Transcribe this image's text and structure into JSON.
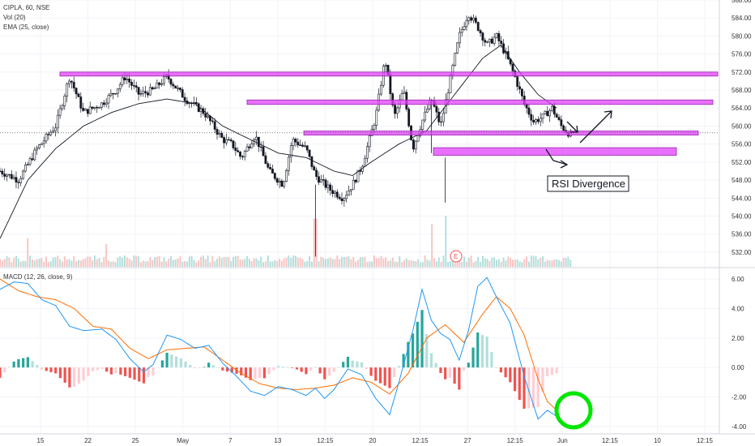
{
  "legend": {
    "symbol": "CIPLA, 60, NSE",
    "volume": "Vol (20)",
    "ema": "EMA (25, close)",
    "macd": "MACD (12, 26, close, 9)"
  },
  "annotation": "RSI Divergence",
  "earnings_marker": "E",
  "colors": {
    "up": "#26a69a",
    "down": "#ef5350",
    "candle": "#131722",
    "zone_fill": "#e040fb",
    "zone_stroke": "#9c27b0",
    "macd_line": "#2196f3",
    "signal_line": "#ff6d00",
    "circle": "#00e600",
    "grid": "#f0f3fa"
  },
  "chart_data": [
    {
      "type": "candlestick",
      "title": "CIPLA, 60, NSE",
      "ylim": [
        530,
        588
      ],
      "y_ticks": [
        "588.00",
        "584.00",
        "580.00",
        "576.00",
        "572.00",
        "568.00",
        "564.00",
        "560.00",
        "556.00",
        "552.00",
        "548.00",
        "544.00",
        "540.00",
        "536.00",
        "532.00"
      ],
      "x_ticks": [
        "15",
        "22",
        "25",
        "May",
        "7",
        "13",
        "12:15",
        "20",
        "12:15",
        "27",
        "12:15",
        "Jun",
        "12:15",
        "10",
        "12:15"
      ],
      "price_path": [
        [
          0,
          550
        ],
        [
          4,
          548
        ],
        [
          8,
          555
        ],
        [
          12,
          560
        ],
        [
          15,
          571
        ],
        [
          18,
          563
        ],
        [
          22,
          565
        ],
        [
          25,
          568
        ],
        [
          27,
          571
        ],
        [
          30,
          567
        ],
        [
          33,
          568
        ],
        [
          36,
          571
        ],
        [
          40,
          566
        ],
        [
          44,
          563
        ],
        [
          48,
          557
        ],
        [
          50,
          556
        ],
        [
          52,
          553
        ],
        [
          55,
          558
        ],
        [
          58,
          550
        ],
        [
          61,
          547
        ],
        [
          63,
          557
        ],
        [
          66,
          555
        ],
        [
          68,
          549
        ],
        [
          71,
          546
        ],
        [
          74,
          544
        ],
        [
          76,
          547
        ],
        [
          78,
          551
        ],
        [
          81,
          562
        ],
        [
          83,
          575
        ],
        [
          85,
          562
        ],
        [
          87,
          568
        ],
        [
          89,
          555
        ],
        [
          91,
          561
        ],
        [
          93,
          566
        ],
        [
          95,
          560
        ],
        [
          97,
          570
        ],
        [
          99,
          580
        ],
        [
          101,
          585
        ],
        [
          103,
          582
        ],
        [
          105,
          578
        ],
        [
          107,
          580
        ],
        [
          109,
          576
        ],
        [
          111,
          571
        ],
        [
          113,
          565
        ],
        [
          115,
          561
        ],
        [
          117,
          562
        ],
        [
          119,
          564
        ],
        [
          121,
          560
        ],
        [
          123,
          558
        ]
      ],
      "ema_path": [
        [
          0,
          535
        ],
        [
          6,
          548
        ],
        [
          12,
          555
        ],
        [
          18,
          560
        ],
        [
          24,
          563
        ],
        [
          30,
          565
        ],
        [
          36,
          566
        ],
        [
          42,
          565
        ],
        [
          48,
          560
        ],
        [
          54,
          557
        ],
        [
          60,
          554
        ],
        [
          66,
          553
        ],
        [
          72,
          550
        ],
        [
          76,
          549
        ],
        [
          80,
          552
        ],
        [
          86,
          556
        ],
        [
          92,
          559
        ],
        [
          98,
          567
        ],
        [
          104,
          575
        ],
        [
          108,
          578
        ],
        [
          112,
          572
        ],
        [
          116,
          567
        ],
        [
          120,
          564
        ]
      ],
      "volume_spikes": [
        {
          "x": 68,
          "value": 0.85
        },
        {
          "x": 93,
          "value": 0.75
        },
        {
          "x": 96,
          "value": 0.9
        },
        {
          "x": 6,
          "value": 0.5
        },
        {
          "x": 23,
          "value": 0.4
        }
      ],
      "zones": [
        {
          "low": 571.2,
          "high": 572.0
        },
        {
          "low": 564.8,
          "high": 565.8
        },
        {
          "low": 558.0,
          "high": 558.9
        },
        {
          "low": 553.5,
          "high": 555.2
        }
      ],
      "last_price": 558.5
    },
    {
      "type": "line",
      "title": "MACD (12, 26, close, 9)",
      "ylim": [
        -4.5,
        6.5
      ],
      "y_ticks": [
        "6.00",
        "4.00",
        "2.00",
        "0.00",
        "-2.00",
        "-4.00"
      ],
      "series": [
        {
          "values": [
            [
              0,
              5.3
            ],
            [
              3,
              5.8
            ],
            [
              6,
              5.7
            ],
            [
              9,
              4.6
            ],
            [
              12,
              4.2
            ],
            [
              15,
              2.8
            ],
            [
              18,
              2.5
            ],
            [
              22,
              2.6
            ],
            [
              25,
              1.9
            ],
            [
              28,
              0.6
            ],
            [
              31,
              -0.3
            ],
            [
              33,
              0.2
            ],
            [
              36,
              2.2
            ],
            [
              39,
              1.9
            ],
            [
              42,
              1.3
            ],
            [
              45,
              1.5
            ],
            [
              48,
              0.3
            ],
            [
              51,
              -0.6
            ],
            [
              54,
              -1.6
            ],
            [
              57,
              -1.9
            ],
            [
              60,
              -1.3
            ],
            [
              63,
              -1.5
            ],
            [
              66,
              -1.9
            ],
            [
              68,
              -1.4
            ],
            [
              70,
              -2.1
            ],
            [
              72,
              -1.5
            ],
            [
              75,
              -0.1
            ],
            [
              78,
              -0.5
            ],
            [
              81,
              -2.1
            ],
            [
              84,
              -3.2
            ],
            [
              86,
              -1.0
            ],
            [
              89,
              2.5
            ],
            [
              91,
              5.3
            ],
            [
              93,
              3.2
            ],
            [
              95,
              2.3
            ],
            [
              97,
              1.9
            ],
            [
              99,
              0.5
            ],
            [
              101,
              2.5
            ],
            [
              103,
              5.5
            ],
            [
              105,
              6.1
            ],
            [
              107,
              4.8
            ],
            [
              110,
              3.0
            ],
            [
              113,
              -0.6
            ],
            [
              116,
              -3.5
            ],
            [
              118,
              -2.9
            ],
            [
              120,
              -3.3
            ]
          ]
        },
        {
          "values": [
            [
              0,
              6.0
            ],
            [
              4,
              5.2
            ],
            [
              8,
              4.8
            ],
            [
              12,
              4.6
            ],
            [
              16,
              4.0
            ],
            [
              20,
              2.8
            ],
            [
              24,
              2.6
            ],
            [
              28,
              1.3
            ],
            [
              32,
              0.6
            ],
            [
              36,
              1.2
            ],
            [
              40,
              1.3
            ],
            [
              44,
              1.4
            ],
            [
              48,
              0.5
            ],
            [
              52,
              -0.4
            ],
            [
              56,
              -1.1
            ],
            [
              60,
              -1.4
            ],
            [
              64,
              -1.5
            ],
            [
              68,
              -1.4
            ],
            [
              72,
              -1.2
            ],
            [
              76,
              -0.7
            ],
            [
              80,
              -1.0
            ],
            [
              84,
              -1.8
            ],
            [
              88,
              -0.4
            ],
            [
              92,
              2.0
            ],
            [
              96,
              2.9
            ],
            [
              100,
              1.7
            ],
            [
              104,
              3.6
            ],
            [
              107,
              4.8
            ],
            [
              110,
              4.0
            ],
            [
              113,
              2.2
            ],
            [
              116,
              -0.8
            ],
            [
              118,
              -2.3
            ],
            [
              120,
              -2.9
            ]
          ]
        }
      ]
    }
  ]
}
